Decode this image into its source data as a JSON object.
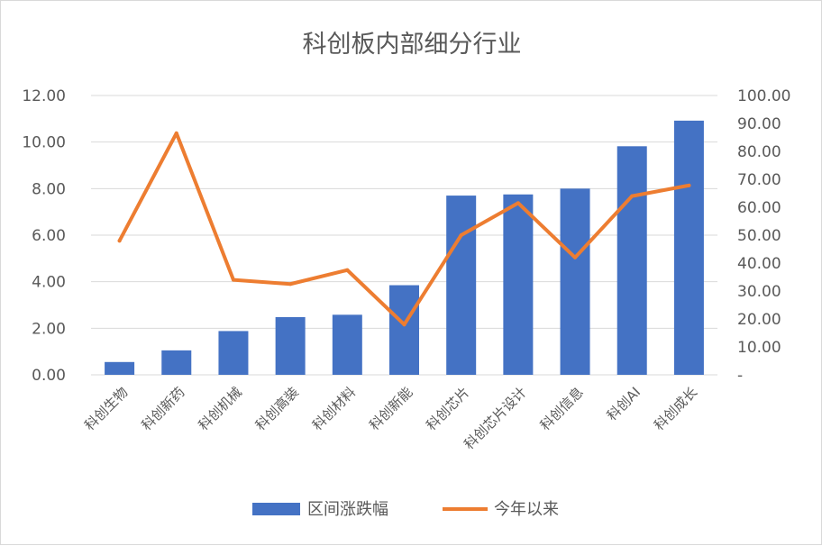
{
  "chart_data": {
    "type": "bar+line",
    "title": "科创板内部细分行业",
    "categories": [
      "科创生物",
      "科创新药",
      "科创机械",
      "科创高装",
      "科创材料",
      "科创新能",
      "科创芯片",
      "科创芯片设计",
      "科创信息",
      "科创AI",
      "科创成长"
    ],
    "series": [
      {
        "name": "区间涨跌幅",
        "type": "bar",
        "axis": "left",
        "color": "#4472C4",
        "values": [
          0.55,
          1.05,
          1.88,
          2.48,
          2.58,
          3.85,
          7.7,
          7.75,
          8.0,
          9.82,
          10.92
        ]
      },
      {
        "name": "今年以来",
        "type": "line",
        "axis": "right",
        "color": "#ED7D31",
        "values": [
          48.0,
          86.5,
          34.0,
          32.5,
          37.5,
          18.0,
          50.0,
          61.5,
          42.0,
          64.0,
          67.8
        ]
      }
    ],
    "ylim_left": [
      0,
      12
    ],
    "yticks_left": [
      "0.00",
      "2.00",
      "4.00",
      "6.00",
      "8.00",
      "10.00",
      "12.00"
    ],
    "ylim_right": [
      0,
      100
    ],
    "yticks_right": [
      "-",
      "10.00",
      "20.00",
      "30.00",
      "40.00",
      "50.00",
      "60.00",
      "70.00",
      "80.00",
      "90.00",
      "100.00"
    ],
    "grid": true,
    "legend_position": "bottom"
  }
}
